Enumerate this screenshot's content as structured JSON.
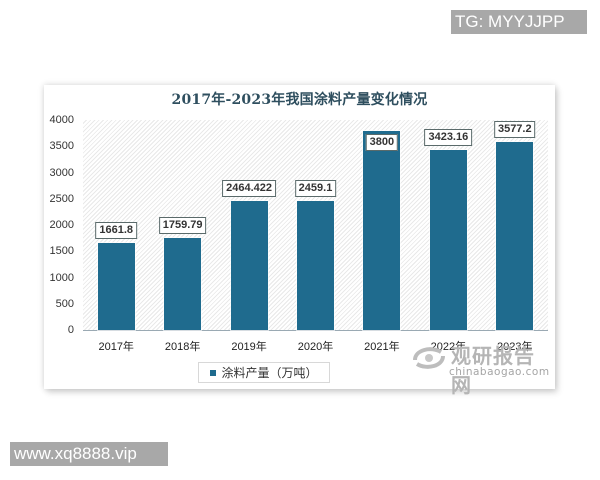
{
  "watermarks": {
    "top_right": "TG: MYYJJPP",
    "bottom_left": "www.xq8888.vip"
  },
  "chart_data": {
    "type": "bar",
    "title": "2017年-2023年我国涂料产量变化情况",
    "categories": [
      "2017年",
      "2018年",
      "2019年",
      "2020年",
      "2021年",
      "2022年",
      "2023年"
    ],
    "series": [
      {
        "name": "涂料产量（万吨）",
        "values": [
          1661.8,
          1759.79,
          2464.422,
          2459.1,
          3800,
          3423.16,
          3577.2
        ],
        "labels": [
          "1661.8",
          "1759.79",
          "2464.422",
          "2459.1",
          "3800",
          "3423.16",
          "3577.2"
        ],
        "color": "#1f6b8e"
      }
    ],
    "xlabel": "",
    "ylabel": "",
    "ylim": [
      0,
      4000
    ],
    "yticks": [
      "4000",
      "3500",
      "3000",
      "2500",
      "2000",
      "1500",
      "1000",
      "500",
      "0"
    ],
    "grid": false,
    "legend_position": "bottom"
  },
  "legend": {
    "label": "涂料产量（万吨）"
  },
  "brand": {
    "name_cn": "观研报告网",
    "domain": "chinabaogao.com",
    "logo_icon": "swirl-logo-icon"
  }
}
